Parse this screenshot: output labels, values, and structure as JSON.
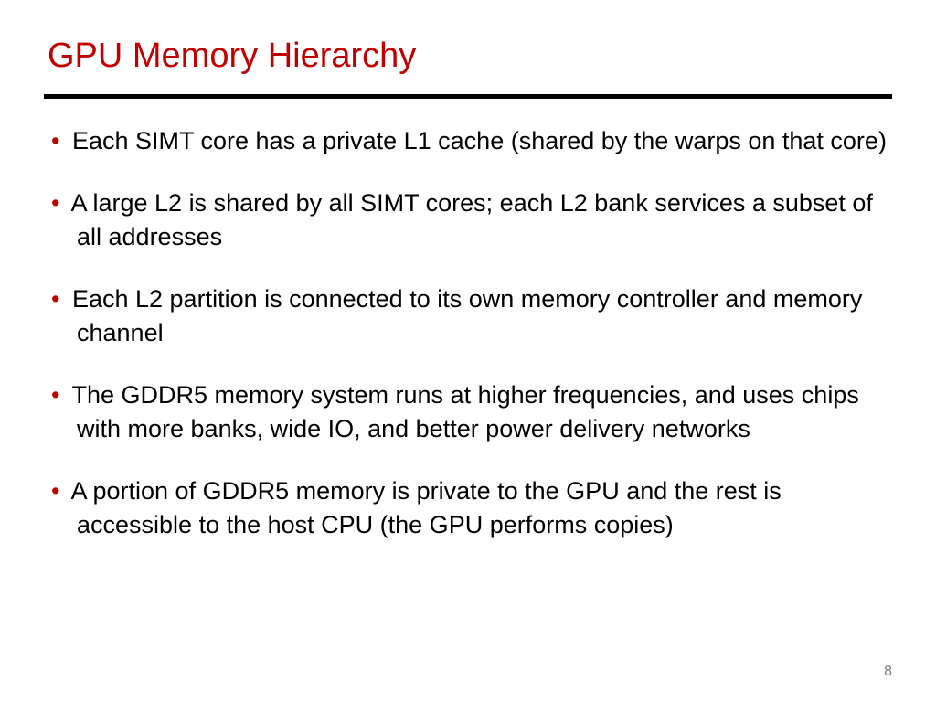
{
  "title": {
    "text": "GPU Memory Hierarchy",
    "color": "#c00000",
    "fontsize": 38
  },
  "divider": {
    "color": "#000000",
    "thickness": 5
  },
  "bullets": [
    {
      "text": "Each SIMT core has a private L1 cache (shared by the warps on that core)"
    },
    {
      "text": "A large L2 is shared by all SIMT cores; each L2 bank services a subset of all addresses"
    },
    {
      "text": "Each L2 partition is connected to its own memory controller and memory channel"
    },
    {
      "text": "The GDDR5 memory system runs at higher frequencies, and uses chips with more banks, wide IO, and better power delivery networks"
    },
    {
      "text": "A portion of GDDR5 memory is private to the GPU and the rest is accessible to the host CPU (the GPU performs copies)"
    }
  ],
  "bullet_style": {
    "marker": "•",
    "marker_color": "#c00000",
    "text_color": "#000000",
    "fontsize": 27
  },
  "page_number": "8",
  "background_color": "#ffffff"
}
